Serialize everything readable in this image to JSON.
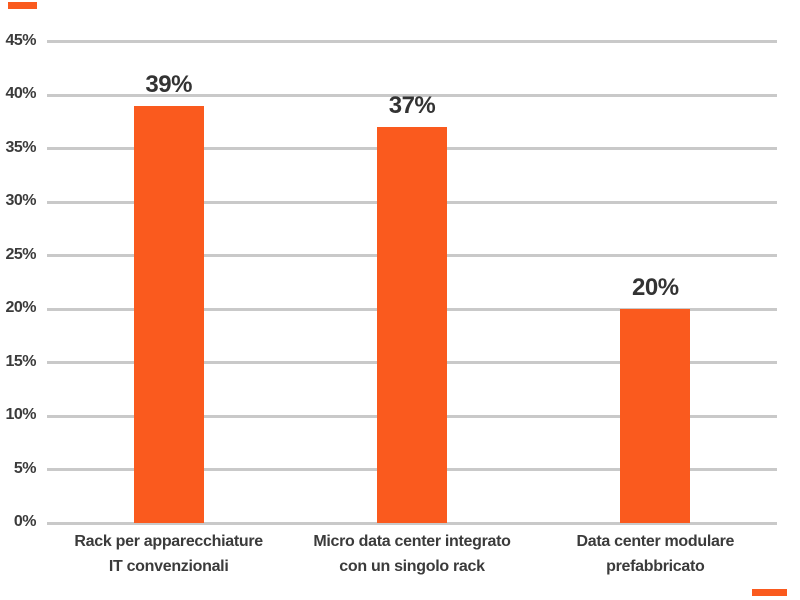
{
  "page": {
    "background": "#FFFFFF"
  },
  "decorations": {
    "accent_color": "#FA5A1E",
    "top_left_dash": "accent-dash",
    "bottom_right_dash": "accent-dash"
  },
  "chart_data": {
    "type": "bar",
    "title": "",
    "xlabel": "",
    "ylabel": "",
    "categories": [
      "Rack per apparecchiature IT convenzionali",
      "Micro data center integrato con un singolo rack",
      "Data center modulare prefabbricato"
    ],
    "category_lines": [
      [
        "Rack per apparecchiature",
        "IT convenzionali"
      ],
      [
        "Micro data center integrato",
        "con un singolo rack"
      ],
      [
        "Data center modulare",
        "prefabbricato"
      ]
    ],
    "values": [
      39,
      37,
      20
    ],
    "value_labels": [
      "39%",
      "37%",
      "20%"
    ],
    "ylim": [
      0,
      45
    ],
    "y_tick_step": 5,
    "y_tick_labels": [
      "0%",
      "5%",
      "10%",
      "15%",
      "20%",
      "25%",
      "30%",
      "35%",
      "40%",
      "45%"
    ],
    "grid": true,
    "legend": null,
    "bar_color": "#FA5A1E",
    "grid_color": "#C9C9C9",
    "label_color": "#3B3B3B",
    "value_label_color": "#333333"
  }
}
